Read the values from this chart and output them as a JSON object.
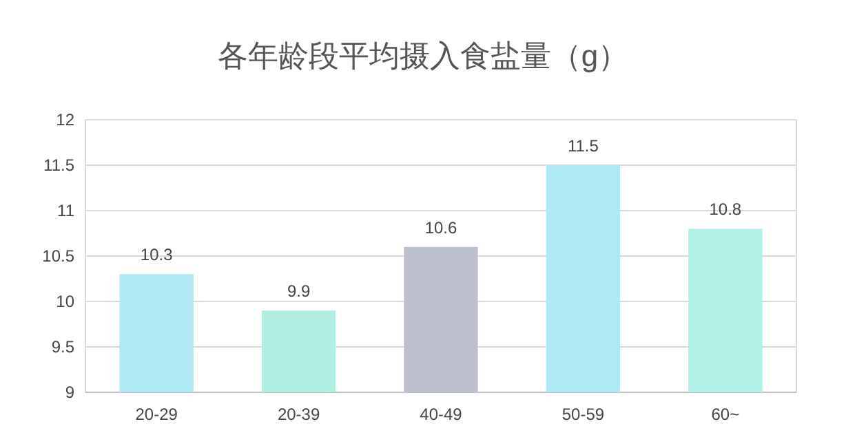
{
  "chart_data": {
    "type": "bar",
    "title": "各年龄段平均摄入食盐量（g）",
    "categories": [
      "20-29",
      "20-39",
      "40-49",
      "50-59",
      "60~"
    ],
    "values": [
      10.3,
      9.9,
      10.6,
      11.5,
      10.8
    ],
    "colors": [
      "#b0e8f4",
      "#b0f0e2",
      "#bcbfcc",
      "#b0e8f4",
      "#b0f0e6"
    ],
    "ylim": [
      9,
      12
    ],
    "yticks": [
      9,
      9.5,
      10,
      10.5,
      11,
      11.5,
      12
    ],
    "grid": "y",
    "data_labels": true
  }
}
